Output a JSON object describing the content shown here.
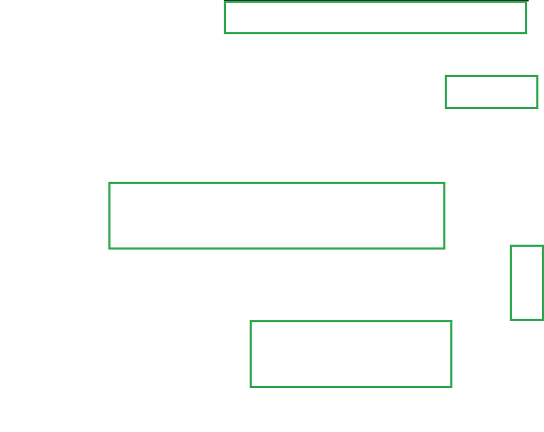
{
  "theme": {
    "background": "#ffffff",
    "box_border": "#2ea84f",
    "top_edge": "#1f1f1f"
  },
  "boxes": [
    {
      "name": "outlined-region-1",
      "label": ""
    },
    {
      "name": "outlined-region-2",
      "label": ""
    },
    {
      "name": "outlined-region-3",
      "label": ""
    },
    {
      "name": "outlined-region-4",
      "label": ""
    },
    {
      "name": "outlined-region-5",
      "label": ""
    }
  ]
}
